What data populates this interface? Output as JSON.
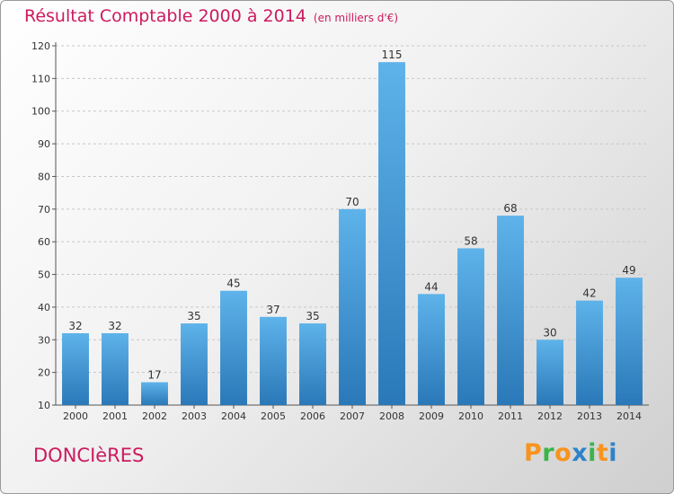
{
  "header": {
    "title": "Résultat Comptable 2000 à 2014",
    "unit": "(en milliers d'€)"
  },
  "footer": {
    "commune": "DONCIèRES",
    "brand_letters": [
      "P",
      "r",
      "o",
      "x",
      "i",
      "t",
      "i"
    ],
    "brand_colors": [
      "#f7941d",
      "#39b54a",
      "#f7941d",
      "#2e83c8",
      "#39b54a",
      "#f7941d",
      "#2e83c8"
    ]
  },
  "colors": {
    "title": "#cc1a5e",
    "bar_light": "#5eb3ea",
    "bar_dark": "#2a78b8",
    "grid": "#c8c8c8"
  },
  "chart_data": {
    "type": "bar",
    "categories": [
      "2000",
      "2001",
      "2002",
      "2003",
      "2004",
      "2005",
      "2006",
      "2007",
      "2008",
      "2009",
      "2010",
      "2011",
      "2012",
      "2013",
      "2014"
    ],
    "values": [
      32,
      32,
      17,
      35,
      45,
      37,
      35,
      70,
      115,
      44,
      58,
      68,
      30,
      42,
      49
    ],
    "yticks": [
      10,
      20,
      30,
      40,
      50,
      60,
      70,
      80,
      90,
      100,
      110,
      120
    ],
    "ylim": [
      10,
      120
    ],
    "grid": true
  }
}
